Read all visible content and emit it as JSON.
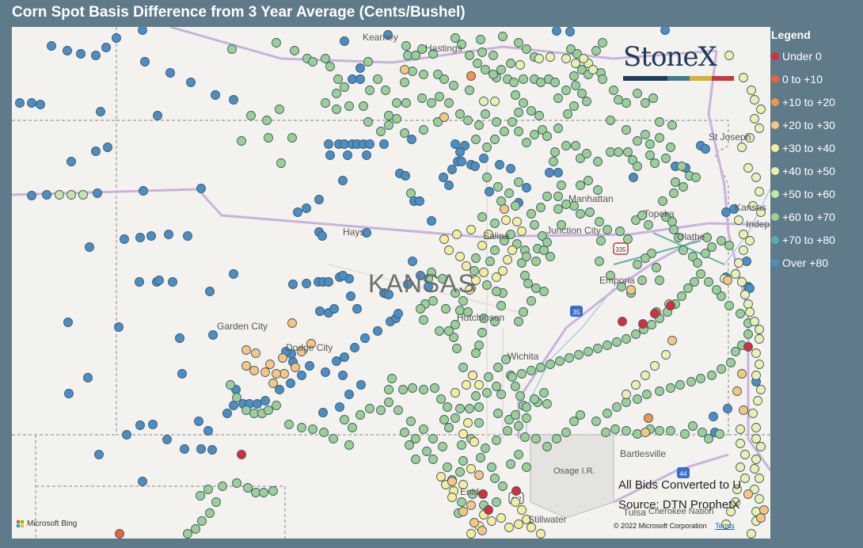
{
  "title": "Corn Spot Basis Difference from 3 Year Average (Cents/Bushel)",
  "logo": {
    "text": "StoneX",
    "bar_colors": [
      "#1f3b5a",
      "#1f3b5a",
      "#3f7f8f",
      "#d4b23a",
      "#c23a3a"
    ]
  },
  "legend": {
    "title": "Legend",
    "items": [
      {
        "label": "Under 0",
        "color": "#d62f3c"
      },
      {
        "label": "0 to +10",
        "color": "#e8643f"
      },
      {
        "label": "+10 to +20",
        "color": "#f09450"
      },
      {
        "label": "+20 to +30",
        "color": "#f6c680"
      },
      {
        "label": "+30 to +40",
        "color": "#f6ec9c"
      },
      {
        "label": "+40 to +50",
        "color": "#e9f0b0"
      },
      {
        "label": "+50 to +60",
        "color": "#c6e4a6"
      },
      {
        "label": "+60 to +70",
        "color": "#9bcf96"
      },
      {
        "label": "+70 to +80",
        "color": "#5fa9a9"
      },
      {
        "label": "Over +80",
        "color": "#4a8ec5"
      }
    ]
  },
  "map": {
    "state_label": "KANSAS",
    "places": [
      "Kearney",
      "Hastings",
      "St Joseph",
      "Manhattan",
      "Topeka",
      "Kansas",
      "Indep",
      "Hays",
      "Salina",
      "Junction City",
      "Olathe",
      "Emporia",
      "Garden City",
      "Dodge City",
      "Hutchinson",
      "Wichita",
      "Bartlesville",
      "Osage I.R.",
      "Enid",
      "Tulsa",
      "Cherokee Nation",
      "Stillwater"
    ],
    "highway_shields": [
      "335",
      "35",
      "44",
      "412"
    ]
  },
  "notes": {
    "line1": "All Bids Converted to U",
    "line2": "Source: DTN ProphetX"
  },
  "attribution": {
    "bing": "Microsoft Bing",
    "copyright": "© 2022 Microsoft Corporation",
    "terms": "Terms"
  }
}
